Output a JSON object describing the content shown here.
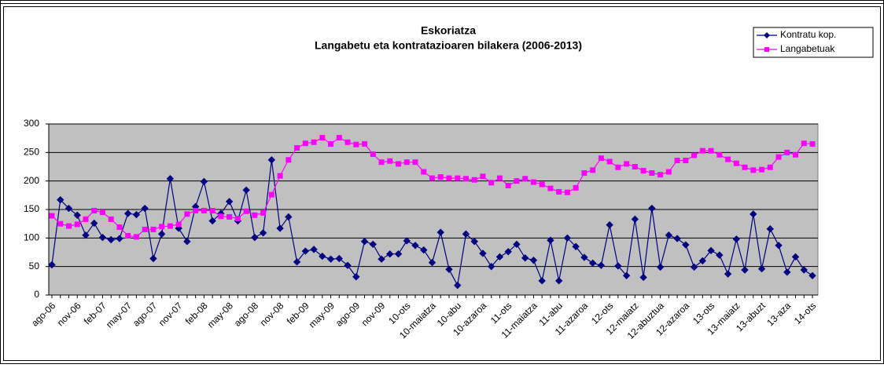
{
  "chart_data": {
    "type": "line",
    "title": "Eskoriatza",
    "subtitle": "Langabetu eta kontratazioaren bilakera (2006-2013)",
    "categories": [
      "ago-06",
      null,
      null,
      "nov-06",
      null,
      null,
      "feb-07",
      null,
      null,
      "may-07",
      null,
      null,
      "ago-07",
      null,
      null,
      "nov-07",
      null,
      null,
      "feb-08",
      null,
      null,
      "may-08",
      null,
      null,
      "ago-08",
      null,
      null,
      "nov-08",
      null,
      null,
      "feb-09",
      null,
      null,
      "may-09",
      null,
      null,
      "ago-09",
      null,
      null,
      "nov-09",
      null,
      null,
      "10-ots",
      null,
      null,
      "10-maiatza",
      null,
      null,
      "10-abu",
      null,
      null,
      "10-azaroa",
      null,
      null,
      "11-ots",
      null,
      null,
      "11-maiatza",
      null,
      null,
      "11-abu",
      null,
      null,
      "11-azaroa",
      null,
      null,
      "12-ots",
      null,
      null,
      "12-maiatz",
      null,
      null,
      "12-abuztua",
      null,
      null,
      "12-azaroa",
      null,
      null,
      "13-ots",
      null,
      null,
      "13-maiatz",
      null,
      null,
      "13-abuzt",
      null,
      null,
      "13-aza",
      null,
      null,
      "14-ots"
    ],
    "series": [
      {
        "name": "Kontratu kop.",
        "color": "#000080",
        "marker": "diamond",
        "values": [
          53,
          167,
          152,
          140,
          105,
          126,
          101,
          97,
          99,
          143,
          141,
          152,
          64,
          107,
          204,
          117,
          94,
          155,
          199,
          130,
          143,
          164,
          130,
          184,
          101,
          109,
          237,
          117,
          137,
          58,
          77,
          80,
          68,
          63,
          64,
          52,
          32,
          94,
          89,
          63,
          72,
          72,
          95,
          87,
          79,
          57,
          110,
          45,
          17,
          107,
          94,
          73,
          50,
          67,
          76,
          89,
          65,
          61,
          25,
          96,
          25,
          100,
          85,
          66,
          56,
          52,
          123,
          51,
          34,
          133,
          31,
          152,
          49,
          105,
          99,
          88,
          49,
          60,
          78,
          70,
          37,
          98,
          44,
          142,
          46,
          116,
          87,
          40,
          67,
          44,
          34
        ]
      },
      {
        "name": "Langabetuak",
        "color": "#ff00ff",
        "marker": "square",
        "values": [
          139,
          125,
          121,
          124,
          133,
          148,
          145,
          133,
          119,
          104,
          102,
          115,
          115,
          120,
          121,
          124,
          142,
          148,
          148,
          148,
          138,
          137,
          134,
          147,
          140,
          144,
          176,
          209,
          237,
          258,
          266,
          268,
          276,
          265,
          276,
          268,
          264,
          265,
          247,
          233,
          235,
          230,
          233,
          233,
          216,
          205,
          207,
          205,
          205,
          204,
          202,
          208,
          197,
          205,
          192,
          200,
          204,
          198,
          194,
          187,
          181,
          180,
          188,
          214,
          219,
          240,
          234,
          224,
          230,
          225,
          218,
          214,
          211,
          216,
          236,
          236,
          245,
          253,
          253,
          246,
          238,
          231,
          224,
          219,
          220,
          224,
          242,
          250,
          246,
          266,
          265
        ]
      }
    ],
    "ylim": [
      0,
      300
    ],
    "yticks": [
      0,
      50,
      100,
      150,
      200,
      250,
      300
    ],
    "grid": true,
    "legend": "top-right",
    "plot_background": "#c0c0c0"
  }
}
